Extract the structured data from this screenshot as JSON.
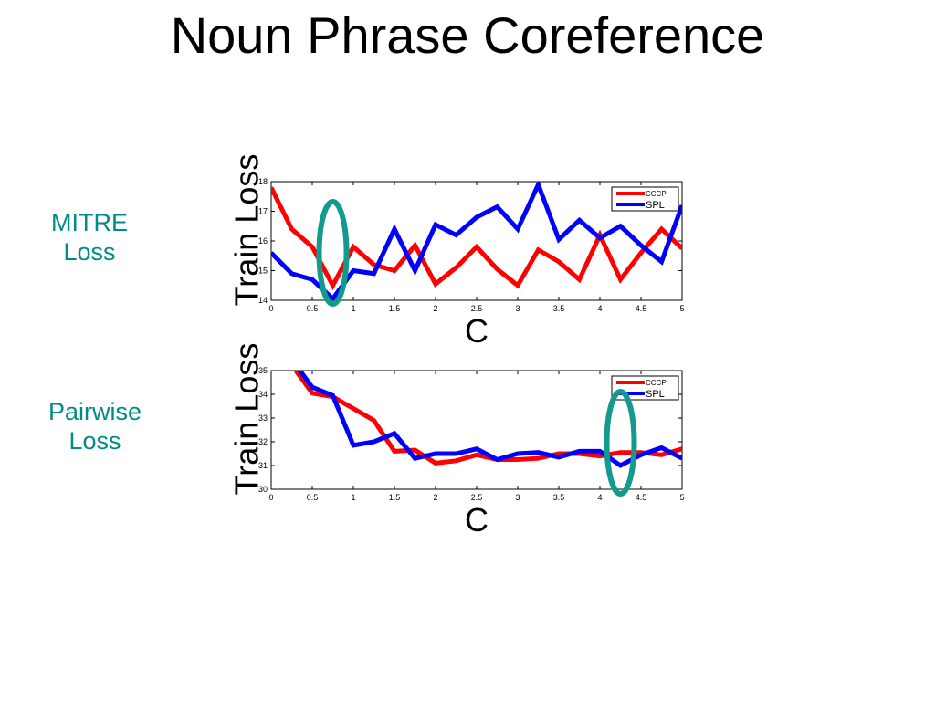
{
  "slide": {
    "title": "Noun Phrase Coreference"
  },
  "labels": {
    "mitre": [
      "MITRE",
      "Loss"
    ],
    "pairwise": [
      "Pairwise",
      "Loss"
    ]
  },
  "colors": {
    "cccp": "#ff0000",
    "spl": "#0000ff",
    "highlight": "#139a8e",
    "label": "#008b8b"
  },
  "chart_data": [
    {
      "type": "line",
      "title": "",
      "xlabel": "C",
      "ylabel": "Train Loss",
      "xlim": [
        0,
        5
      ],
      "ylim": [
        14,
        18
      ],
      "xticks": [
        "0",
        "0.5",
        "1",
        "1.5",
        "2",
        "2.5",
        "3",
        "3.5",
        "4",
        "4.5",
        "5"
      ],
      "yticks": [
        "14",
        "15",
        "16",
        "17",
        "18"
      ],
      "legend": "top-right",
      "highlight": {
        "x": 0.75,
        "shape": "ellipse"
      },
      "series": [
        {
          "name": "CCCP",
          "x": [
            0,
            0.25,
            0.5,
            0.75,
            1,
            1.25,
            1.5,
            1.75,
            2,
            2.25,
            2.5,
            2.75,
            3,
            3.25,
            3.5,
            3.75,
            4,
            4.25,
            4.5,
            4.75,
            5
          ],
          "y": [
            17.8,
            16.4,
            15.8,
            14.5,
            15.8,
            15.2,
            15.0,
            15.85,
            14.55,
            15.1,
            15.8,
            15.05,
            14.5,
            15.7,
            15.3,
            14.7,
            16.2,
            14.7,
            15.6,
            16.4,
            15.75
          ]
        },
        {
          "name": "SPL",
          "x": [
            0,
            0.25,
            0.5,
            0.75,
            1,
            1.25,
            1.5,
            1.75,
            2,
            2.25,
            2.5,
            2.75,
            3,
            3.25,
            3.5,
            3.75,
            4,
            4.25,
            4.5,
            4.75,
            5
          ],
          "y": [
            15.6,
            14.9,
            14.7,
            14.05,
            15.0,
            14.9,
            16.4,
            15.0,
            16.55,
            16.2,
            16.8,
            17.15,
            16.4,
            17.9,
            16.05,
            16.7,
            16.1,
            16.5,
            15.85,
            15.3,
            17.2
          ]
        }
      ]
    },
    {
      "type": "line",
      "title": "",
      "xlabel": "C",
      "ylabel": "Train Loss",
      "xlim": [
        0,
        5
      ],
      "ylim": [
        30,
        35
      ],
      "xticks": [
        "0",
        "0.5",
        "1",
        "1.5",
        "2",
        "2.5",
        "3",
        "3.5",
        "4",
        "4.5",
        "5"
      ],
      "yticks": [
        "30",
        "31",
        "32",
        "33",
        "34",
        "35"
      ],
      "legend": "top-right",
      "highlight": {
        "x": 4.25,
        "shape": "ellipse"
      },
      "series": [
        {
          "name": "CCCP",
          "x": [
            0.3,
            0.5,
            0.75,
            1,
            1.25,
            1.5,
            1.75,
            2,
            2.25,
            2.5,
            2.75,
            3,
            3.25,
            3.5,
            3.75,
            4,
            4.25,
            4.5,
            4.75,
            5
          ],
          "y": [
            35.0,
            34.05,
            33.9,
            33.4,
            32.9,
            31.6,
            31.65,
            31.1,
            31.2,
            31.45,
            31.25,
            31.25,
            31.3,
            31.5,
            31.5,
            31.4,
            31.55,
            31.55,
            31.45,
            31.7
          ]
        },
        {
          "name": "SPL",
          "x": [
            0.35,
            0.5,
            0.75,
            1,
            1.25,
            1.5,
            1.75,
            2,
            2.25,
            2.5,
            2.75,
            3,
            3.25,
            3.5,
            3.75,
            4,
            4.25,
            4.5,
            4.75,
            5
          ],
          "y": [
            35.0,
            34.3,
            33.95,
            31.85,
            32.0,
            32.35,
            31.3,
            31.5,
            31.5,
            31.7,
            31.25,
            31.5,
            31.55,
            31.35,
            31.6,
            31.6,
            31.0,
            31.45,
            31.75,
            31.3
          ]
        }
      ]
    }
  ]
}
